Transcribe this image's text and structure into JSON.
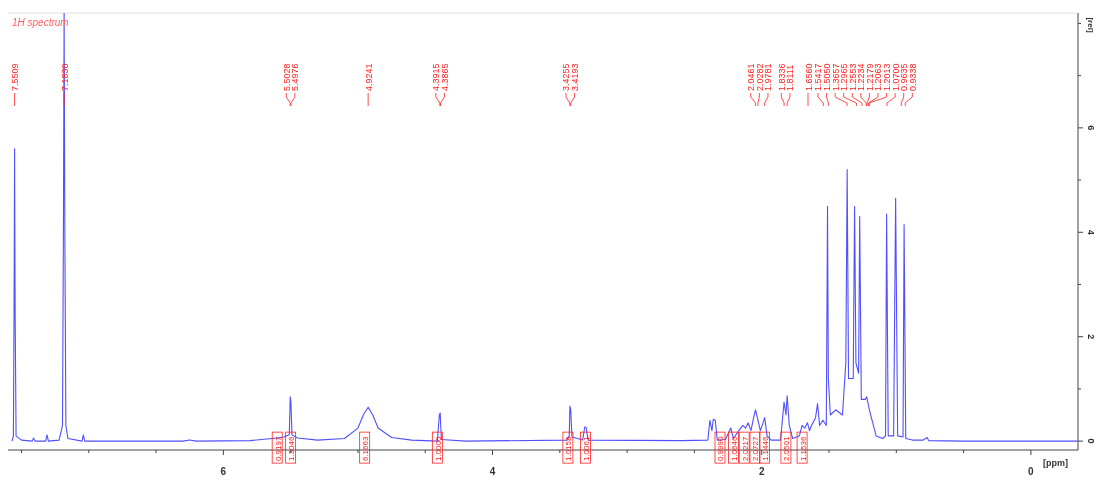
{
  "chart_data": {
    "type": "line",
    "title": "1H spectrum",
    "xlabel": "[ppm]",
    "ylabel": "[rel]",
    "xlim": [
      7.6,
      -0.35
    ],
    "ylim": [
      -0.17,
      8.2
    ],
    "xticks": [
      {
        "value": 7.5,
        "label": null
      },
      {
        "value": 7,
        "label": null
      },
      {
        "value": 6.5,
        "label": null
      },
      6,
      {
        "value": 5.5,
        "label": null
      },
      {
        "value": 5,
        "label": null
      },
      {
        "value": 4.5,
        "label": null
      },
      4,
      {
        "value": 3.5,
        "label": null
      },
      {
        "value": 3,
        "label": null
      },
      {
        "value": 2.5,
        "label": null
      },
      2,
      {
        "value": 1.5,
        "label": null
      },
      {
        "value": 1,
        "label": null
      },
      {
        "value": 0.5,
        "label": null
      },
      0
    ],
    "yticks": [
      0,
      {
        "value": 1,
        "label": null
      },
      2,
      {
        "value": 3,
        "label": null
      },
      4,
      {
        "value": 5,
        "label": null
      },
      6,
      {
        "value": 7,
        "label": null
      },
      {
        "value": 8,
        "label": null
      }
    ],
    "grid": false,
    "marker": "none",
    "line_style": "solid",
    "series": [
      {
        "color": "#5050ff",
        "x": [
          7.57,
          7.56,
          7.555,
          7.551,
          7.547,
          7.54,
          7.5,
          7.42,
          7.41,
          7.4,
          7.32,
          7.31,
          7.3,
          7.22,
          7.195,
          7.188,
          7.183,
          7.178,
          7.17,
          7.155,
          7.05,
          7.04,
          7.03,
          6.3,
          6.25,
          6.2,
          5.8,
          5.6,
          5.55,
          5.51,
          5.503,
          5.498,
          5.49,
          5.45,
          5.3,
          5.1,
          5.0,
          4.96,
          4.924,
          4.89,
          4.85,
          4.75,
          4.6,
          4.41,
          4.395,
          4.389,
          4.38,
          4.2,
          3.45,
          3.43,
          3.425,
          3.419,
          3.41,
          3.33,
          3.315,
          3.305,
          3.29,
          2.6,
          2.4,
          2.385,
          2.37,
          2.36,
          2.345,
          2.33,
          2.27,
          2.23,
          2.21,
          2.17,
          2.14,
          2.12,
          2.1,
          2.08,
          2.06,
          2.046,
          2.028,
          2.01,
          1.99,
          1.978,
          1.96,
          1.93,
          1.86,
          1.834,
          1.82,
          1.811,
          1.795,
          1.77,
          1.72,
          1.7,
          1.68,
          1.66,
          1.645,
          1.63,
          1.6,
          1.585,
          1.57,
          1.545,
          1.52,
          1.511,
          1.505,
          1.49,
          1.45,
          1.4,
          1.375,
          1.365,
          1.355,
          1.32,
          1.31,
          1.3,
          1.28,
          1.272,
          1.26,
          1.23,
          1.22,
          1.2,
          1.15,
          1.1,
          1.08,
          1.072,
          1.06,
          1.02,
          1.005,
          0.99,
          0.95,
          0.942,
          0.93,
          0.88,
          0.8,
          0.77,
          0.76,
          0.5,
          -0.35
        ],
        "values": [
          0,
          0.1,
          2.5,
          5.6,
          2.5,
          0.1,
          0.02,
          0,
          0.06,
          0,
          0,
          0.12,
          0,
          0.02,
          0.3,
          4.2,
          8.2,
          4.2,
          0.3,
          0.05,
          0,
          0.12,
          0,
          0,
          0.02,
          0,
          0.01,
          0.06,
          0.08,
          0.12,
          0.85,
          0.75,
          0.12,
          0.06,
          0.02,
          0.05,
          0.25,
          0.5,
          0.65,
          0.5,
          0.25,
          0.07,
          0.02,
          0,
          0.5,
          0.54,
          0.03,
          0,
          0.02,
          0.1,
          0.67,
          0.6,
          0.08,
          0.02,
          0.27,
          0.27,
          0.02,
          0.01,
          0.02,
          0.4,
          0.2,
          0.42,
          0.4,
          0.02,
          0.03,
          0.25,
          0.05,
          0.2,
          0.3,
          0.25,
          0.35,
          0.2,
          0.45,
          0.6,
          0.4,
          0.2,
          0.35,
          0.45,
          0.1,
          0.02,
          0.02,
          0.75,
          0.5,
          0.87,
          0.3,
          0.05,
          0.1,
          0.3,
          0.25,
          0.35,
          0.2,
          0.3,
          0.45,
          0.72,
          0.3,
          0.4,
          0.3,
          4.5,
          1.2,
          0.5,
          0.6,
          0.5,
          1.5,
          5.2,
          1.2,
          1.2,
          4.5,
          1.5,
          1.3,
          4.3,
          0.8,
          0.8,
          0.85,
          0.6,
          0.1,
          0.05,
          0.1,
          4.35,
          0.1,
          0.1,
          4.65,
          0.1,
          0.08,
          4.15,
          0.05,
          0.02,
          0.02,
          0.07,
          0.01,
          0,
          0
        ]
      }
    ],
    "annotations": [
      {
        "text": "7.5509",
        "x": 7.5509
      },
      {
        "text": "7.1830",
        "x": 7.183
      },
      {
        "text": "5.5028",
        "x": 5.5028
      },
      {
        "text": "5.4976",
        "x": 5.4976
      },
      {
        "text": "4.9241",
        "x": 4.9241
      },
      {
        "text": "4.3915",
        "x": 4.3915
      },
      {
        "text": "4.3865",
        "x": 4.3865
      },
      {
        "text": "3.4255",
        "x": 3.4255
      },
      {
        "text": "3.4193",
        "x": 3.4193
      },
      {
        "text": "2.0461",
        "x": 2.0461
      },
      {
        "text": "2.0282",
        "x": 2.0282
      },
      {
        "text": "1.9781",
        "x": 1.9781
      },
      {
        "text": "1.8336",
        "x": 1.8336
      },
      {
        "text": "1.8111",
        "x": 1.8111
      },
      {
        "text": "1.6560",
        "x": 1.656
      },
      {
        "text": "1.5417",
        "x": 1.5417
      },
      {
        "text": "1.5050",
        "x": 1.505
      },
      {
        "text": "1.3657",
        "x": 1.3657
      },
      {
        "text": "1.2965",
        "x": 1.2965
      },
      {
        "text": "1.2553",
        "x": 1.2553
      },
      {
        "text": "1.2234",
        "x": 1.2234
      },
      {
        "text": "1.2179",
        "x": 1.2179
      },
      {
        "text": "1.2063",
        "x": 1.2063
      },
      {
        "text": "1.2013",
        "x": 1.2013
      },
      {
        "text": "1.0700",
        "x": 1.07
      },
      {
        "text": "0.9635",
        "x": 0.9635
      },
      {
        "text": "0.9338",
        "x": 0.9338
      },
      {
        "text": "0.9197",
        "x": 5.6
      },
      {
        "text": "1.3046",
        "x": 5.5
      },
      {
        "text": "6.1663",
        "x": 4.95
      },
      {
        "text": "1.0000",
        "x": 4.41
      },
      {
        "text": "1.0158",
        "x": 3.44
      },
      {
        "text": "1.0061",
        "x": 3.31
      },
      {
        "text": "0.9990",
        "x": 2.31
      },
      {
        "text": "1.0646",
        "x": 2.21
      },
      {
        "text": "2.0217",
        "x": 2.13
      },
      {
        "text": "2.0727",
        "x": 2.05
      },
      {
        "text": "1.1446",
        "x": 1.98
      },
      {
        "text": "2.0501",
        "x": 1.82
      },
      {
        "text": "1.1536",
        "x": 1.7
      }
    ]
  }
}
